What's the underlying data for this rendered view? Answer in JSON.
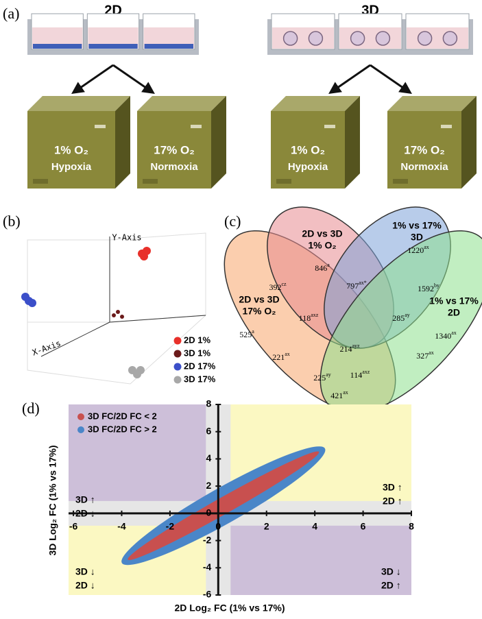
{
  "panel_a": {
    "label": "(a)",
    "groups": [
      {
        "title": "2D",
        "incubators": [
          {
            "condition": "1% O₂",
            "state": "Hypoxia"
          },
          {
            "condition": "17% O₂",
            "state": "Normoxia"
          }
        ]
      },
      {
        "title": "3D",
        "incubators": [
          {
            "condition": "1% O₂",
            "state": "Hypoxia"
          },
          {
            "condition": "17% O₂",
            "state": "Normoxia"
          }
        ]
      }
    ]
  },
  "panel_b": {
    "label": "(b)",
    "y_axis": "Y-Axis",
    "x_axis": "X-Axis",
    "legend": [
      {
        "name": "2D 1%",
        "color": "#e8302a"
      },
      {
        "name": "3D 1%",
        "color": "#6b1a1a"
      },
      {
        "name": "2D 17%",
        "color": "#3b4fc9"
      },
      {
        "name": "3D 17%",
        "color": "#a8a8a8"
      }
    ]
  },
  "panel_c": {
    "label": "(c)",
    "sets": [
      {
        "lines": [
          "2D vs 3D",
          "17% O₂"
        ],
        "color": "#f7a66b"
      },
      {
        "lines": [
          "2D vs 3D",
          "1% O₂"
        ],
        "color": "#e88a8f"
      },
      {
        "lines": [
          "1% vs 17%",
          "3D"
        ],
        "color": "#7ea3d8"
      },
      {
        "lines": [
          "1% vs 17%",
          "2D"
        ],
        "color": "#8ee08e"
      }
    ],
    "regions": [
      {
        "value": 525,
        "sup": "a"
      },
      {
        "value": 846,
        "sup": "a"
      },
      {
        "value": 1220,
        "sup": "ax"
      },
      {
        "value": 1340,
        "sup": "ax"
      },
      {
        "value": 392,
        "sup": "cz"
      },
      {
        "value": 797,
        "sup": "ax*"
      },
      {
        "value": 1592,
        "sup": "by"
      },
      {
        "value": 118,
        "sup": "axz"
      },
      {
        "value": 285,
        "sup": "ay"
      },
      {
        "value": 214,
        "sup": "ayz"
      },
      {
        "value": 221,
        "sup": "ax"
      },
      {
        "value": 327,
        "sup": "ax"
      },
      {
        "value": 225,
        "sup": "ay"
      },
      {
        "value": 114,
        "sup": "axz"
      },
      {
        "value": 421,
        "sup": "ax"
      }
    ]
  },
  "chart_data": {
    "type": "scatter",
    "label": "(d)",
    "x_label": "2D Log₂ FC (1% vs 17%)",
    "y_label": "3D Log₂ FC (1% vs 17%)",
    "xlim": [
      -6.2,
      8
    ],
    "ylim": [
      -6,
      8
    ],
    "xticks": [
      -6,
      -4,
      -2,
      0,
      2,
      4,
      6,
      8
    ],
    "yticks": [
      -6,
      -4,
      -2,
      0,
      2,
      4,
      6,
      8
    ],
    "series": [
      {
        "name": "3D FC/2D FC < 2",
        "color": "#c8504f"
      },
      {
        "name": "3D FC/2D FC > 2",
        "color": "#4a86c8"
      }
    ],
    "quadrant_labels": [
      [
        "3D ↑",
        "2D ↓"
      ],
      [
        "3D ↑",
        "2D ↑"
      ],
      [
        "3D ↓",
        "2D ↓"
      ],
      [
        "3D ↓",
        "2D ↑"
      ]
    ]
  }
}
